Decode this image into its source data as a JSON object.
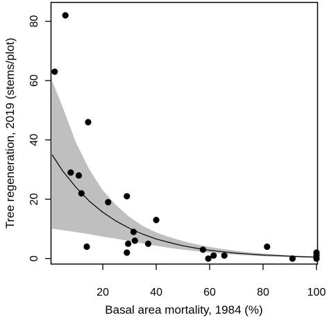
{
  "chart_data": {
    "type": "scatter",
    "xlabel": "Basal area mortality, 1984 (%)",
    "ylabel": "Tree regeneration, 2019 (stems/plot)",
    "xlim": [
      1,
      100
    ],
    "ylim": [
      0,
      80
    ],
    "x_ticks": [
      20,
      40,
      60,
      80,
      100
    ],
    "y_ticks": [
      0,
      20,
      40,
      60,
      80
    ],
    "grid": false,
    "legend": "none",
    "colors": {
      "points": "#000000",
      "fit_line": "#000000",
      "ci_band": "#bfbfbf",
      "axis": "#000000"
    },
    "series": [
      {
        "type": "scatter",
        "x": [
          2,
          6,
          8,
          11,
          12,
          14,
          14.5,
          22,
          29,
          29,
          29.5,
          31.5,
          32,
          37,
          40,
          57.5,
          59.5,
          61.5,
          65.5,
          81.5,
          91,
          100,
          100,
          100
        ],
        "y": [
          63,
          82,
          29,
          28,
          22,
          4,
          46,
          19,
          21,
          2,
          5,
          9,
          6,
          5,
          13,
          3,
          0,
          1,
          1,
          4,
          0,
          2,
          1,
          0
        ]
      },
      {
        "type": "line",
        "x": [
          1,
          5,
          10,
          15,
          20,
          25,
          30,
          35,
          40,
          45,
          50,
          55,
          60,
          65,
          70,
          75,
          80,
          85,
          90,
          95,
          100
        ],
        "y": [
          35,
          29.5,
          24,
          19.3,
          15.6,
          12.6,
          10.2,
          8.2,
          6.6,
          5.4,
          4.3,
          3.5,
          2.8,
          2.3,
          1.8,
          1.5,
          1.2,
          1.0,
          0.8,
          0.6,
          0.5
        ]
      },
      {
        "type": "band",
        "x": [
          1,
          5,
          10,
          15,
          20,
          25,
          30,
          35,
          40,
          45,
          50,
          55,
          60,
          65,
          70,
          75,
          80,
          85,
          90,
          95,
          100
        ],
        "lower": [
          10,
          9.6,
          8.9,
          8.2,
          7.4,
          6.7,
          5.9,
          5.1,
          4.3,
          3.6,
          3.0,
          2.5,
          2.0,
          1.6,
          1.3,
          1.0,
          0.8,
          0.6,
          0.5,
          0.4,
          0.3
        ],
        "upper": [
          60,
          51,
          39,
          30,
          23,
          18,
          14,
          11,
          8.8,
          7.2,
          5.9,
          4.8,
          3.9,
          3.2,
          2.6,
          2.1,
          1.7,
          1.4,
          1.1,
          0.9,
          0.7
        ]
      }
    ]
  }
}
